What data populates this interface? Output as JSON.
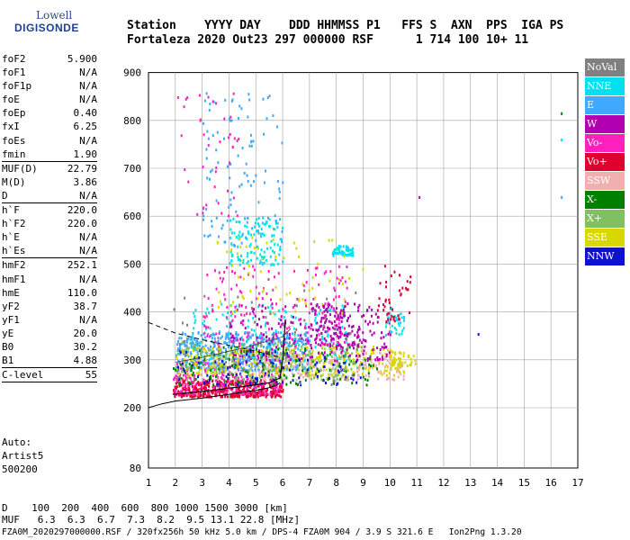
{
  "logo": {
    "top": "Lowell",
    "bottom": "DIGISONDE"
  },
  "header": {
    "line1": "Station    YYYY DAY    DDD HHMMSS P1   FFS S  AXN  PPS  IGA PS",
    "line2": "Fortaleza 2020 Out23 297 000000 RSF      1 714 100 10+ 11"
  },
  "params": [
    {
      "name": "foF2",
      "value": "5.900"
    },
    {
      "name": "foF1",
      "value": "N/A"
    },
    {
      "name": "foF1p",
      "value": "N/A"
    },
    {
      "name": "foE",
      "value": "N/A"
    },
    {
      "name": "foEp",
      "value": "0.40"
    },
    {
      "name": "fxI",
      "value": "6.25"
    },
    {
      "name": "foEs",
      "value": "N/A"
    },
    {
      "name": "fmin",
      "value": "1.90"
    },
    {
      "sep": true
    },
    {
      "name": "MUF(D)",
      "value": "22.79"
    },
    {
      "name": "M(D)",
      "value": "3.86"
    },
    {
      "name": "D",
      "value": "N/A"
    },
    {
      "sep": true
    },
    {
      "name": "h`F",
      "value": "220.0"
    },
    {
      "name": "h`F2",
      "value": "220.0"
    },
    {
      "name": "h`E",
      "value": "N/A"
    },
    {
      "name": "h`Es",
      "value": "N/A"
    },
    {
      "sep": true
    },
    {
      "name": "hmF2",
      "value": "252.1"
    },
    {
      "name": "hmF1",
      "value": "N/A"
    },
    {
      "name": "hmE",
      "value": "110.0"
    },
    {
      "name": "yF2",
      "value": "38.7"
    },
    {
      "name": "yF1",
      "value": "N/A"
    },
    {
      "name": "yE",
      "value": "20.0"
    },
    {
      "name": "B0",
      "value": "30.2"
    },
    {
      "name": "B1",
      "value": "4.88"
    },
    {
      "sep": true
    },
    {
      "name": "C-level",
      "value": "55"
    },
    {
      "sep": true
    }
  ],
  "auto": {
    "line1": "Auto:",
    "line2": "Artist5",
    "line3": "500200"
  },
  "footer": {
    "line1": "D    100  200  400  600  800 1000 1500 3000 [km]",
    "line2": "MUF   6.3  6.3  6.7  7.3  8.2  9.5 13.1 22.8 [MHz]",
    "line3": "FZA0M_2020297000000.RSF / 320fx256h 50 kHz 5.0 km / DPS-4 FZA0M 904 / 3.9 S 321.6 E   Ion2Png 1.3.20"
  },
  "legend": [
    {
      "label": "NoVal",
      "color": "#808080"
    },
    {
      "label": "NNE",
      "color": "#00e0f0"
    },
    {
      "label": "E",
      "color": "#3fa8ff"
    },
    {
      "label": "W",
      "color": "#b000b0"
    },
    {
      "label": "Vo-",
      "color": "#ff20c0"
    },
    {
      "label": "Vo+",
      "color": "#e00030"
    },
    {
      "label": "SSW",
      "color": "#f0b0b0"
    },
    {
      "label": "X-",
      "color": "#008000"
    },
    {
      "label": "X+",
      "color": "#80c060"
    },
    {
      "label": "SSE",
      "color": "#d8d800"
    },
    {
      "label": "NNW",
      "color": "#1010d0"
    }
  ],
  "chart_data": {
    "type": "scatter",
    "x_ticks": [
      "1",
      "2",
      "3",
      "4",
      "5",
      "6",
      "7",
      "8",
      "9",
      "10",
      "11",
      "12",
      "13",
      "14",
      "15",
      "16",
      "17"
    ],
    "y_ticks": [
      "80",
      "200",
      "300",
      "400",
      "500",
      "600",
      "700",
      "800",
      "900"
    ],
    "xlim": [
      1,
      17
    ],
    "y_tick_values": [
      80,
      200,
      300,
      400,
      500,
      600,
      700,
      800,
      900
    ],
    "grid": true,
    "profile_curve": [
      [
        1.0,
        200
      ],
      [
        1.5,
        208
      ],
      [
        2.0,
        214
      ],
      [
        3.0,
        220
      ],
      [
        4.0,
        228
      ],
      [
        5.0,
        236
      ],
      [
        5.5,
        242
      ],
      [
        5.8,
        248
      ],
      [
        5.9,
        252
      ]
    ],
    "profile_top": [
      [
        1.0,
        378
      ],
      [
        2.0,
        356
      ],
      [
        3.0,
        342
      ],
      [
        4.0,
        330
      ],
      [
        5.0,
        318
      ],
      [
        5.9,
        305
      ]
    ],
    "o_trace": [
      [
        1.9,
        228
      ],
      [
        2.5,
        231
      ],
      [
        3.0,
        234
      ],
      [
        3.5,
        237
      ],
      [
        4.0,
        241
      ],
      [
        4.5,
        244
      ],
      [
        5.0,
        248
      ],
      [
        5.5,
        252
      ],
      [
        5.9,
        262
      ],
      [
        6.0,
        300
      ],
      [
        6.1,
        380
      ]
    ],
    "e_trace": [
      [
        2.0,
        295
      ],
      [
        2.5,
        300
      ],
      [
        3.0,
        305
      ],
      [
        3.5,
        311
      ],
      [
        4.0,
        318
      ],
      [
        4.5,
        324
      ],
      [
        5.0,
        332
      ],
      [
        5.5,
        340
      ],
      [
        6.0,
        348
      ],
      [
        6.3,
        365
      ]
    ],
    "clusters": [
      {
        "color": "#e00030",
        "x": [
          1.9,
          6.0
        ],
        "y": [
          225,
          260
        ],
        "n": 420
      },
      {
        "color": "#ff20c0",
        "x": [
          1.9,
          6.0
        ],
        "y": [
          230,
          300
        ],
        "n": 260
      },
      {
        "color": "#3fa8ff",
        "x": [
          2.0,
          7.0
        ],
        "y": [
          280,
          360
        ],
        "n": 520
      },
      {
        "color": "#00e0f0",
        "x": [
          2.5,
          8.5
        ],
        "y": [
          300,
          420
        ],
        "n": 180
      },
      {
        "color": "#d8d800",
        "x": [
          2.0,
          10.5
        ],
        "y": [
          270,
          330
        ],
        "n": 340
      },
      {
        "color": "#f0b0b0",
        "x": [
          5.0,
          10.5
        ],
        "y": [
          260,
          320
        ],
        "n": 200
      },
      {
        "color": "#b000b0",
        "x": [
          4.0,
          10.0
        ],
        "y": [
          300,
          420
        ],
        "n": 230
      },
      {
        "color": "#008000",
        "x": [
          1.9,
          9.5
        ],
        "y": [
          250,
          330
        ],
        "n": 150
      },
      {
        "color": "#80c060",
        "x": [
          2.0,
          9.0
        ],
        "y": [
          260,
          340
        ],
        "n": 160
      },
      {
        "color": "#1010d0",
        "x": [
          2.0,
          9.0
        ],
        "y": [
          250,
          320
        ],
        "n": 90
      },
      {
        "color": "#00e0f0",
        "x": [
          4.0,
          6.0
        ],
        "y": [
          500,
          600
        ],
        "n": 120
      },
      {
        "color": "#00e0f0",
        "x": [
          7.8,
          8.6
        ],
        "y": [
          520,
          540
        ],
        "n": 50
      },
      {
        "color": "#3fa8ff",
        "x": [
          3.0,
          6.0
        ],
        "y": [
          540,
          860
        ],
        "n": 110
      },
      {
        "color": "#ff20c0",
        "x": [
          3.0,
          8.5
        ],
        "y": [
          330,
          500
        ],
        "n": 170
      },
      {
        "color": "#d8d800",
        "x": [
          3.5,
          8.5
        ],
        "y": [
          400,
          560
        ],
        "n": 70
      },
      {
        "color": "#ff20c0",
        "x": [
          2.0,
          4.5
        ],
        "y": [
          600,
          860
        ],
        "n": 40
      },
      {
        "color": "#b000b0",
        "x": [
          7.0,
          9.0
        ],
        "y": [
          330,
          420
        ],
        "n": 100
      },
      {
        "color": "#00e0f0",
        "x": [
          9.8,
          10.5
        ],
        "y": [
          350,
          410
        ],
        "n": 35
      },
      {
        "color": "#d8d800",
        "x": [
          10.0,
          11.0
        ],
        "y": [
          290,
          320
        ],
        "n": 40
      },
      {
        "color": "#e00030",
        "x": [
          9.5,
          10.8
        ],
        "y": [
          380,
          500
        ],
        "n": 40
      },
      {
        "color": "#808080",
        "x": [
          1.9,
          9.0
        ],
        "y": [
          250,
          450
        ],
        "n": 60
      }
    ],
    "isolated_points": [
      {
        "x": 13.3,
        "y": 354,
        "color": "#1010d0"
      },
      {
        "x": 16.4,
        "y": 815,
        "color": "#008000"
      },
      {
        "x": 16.4,
        "y": 760,
        "color": "#00e0f0"
      },
      {
        "x": 16.4,
        "y": 640,
        "color": "#3fa8ff"
      },
      {
        "x": 11.1,
        "y": 640,
        "color": "#b000b0"
      },
      {
        "x": 9.0,
        "y": 490,
        "color": "#d8d800"
      }
    ]
  }
}
